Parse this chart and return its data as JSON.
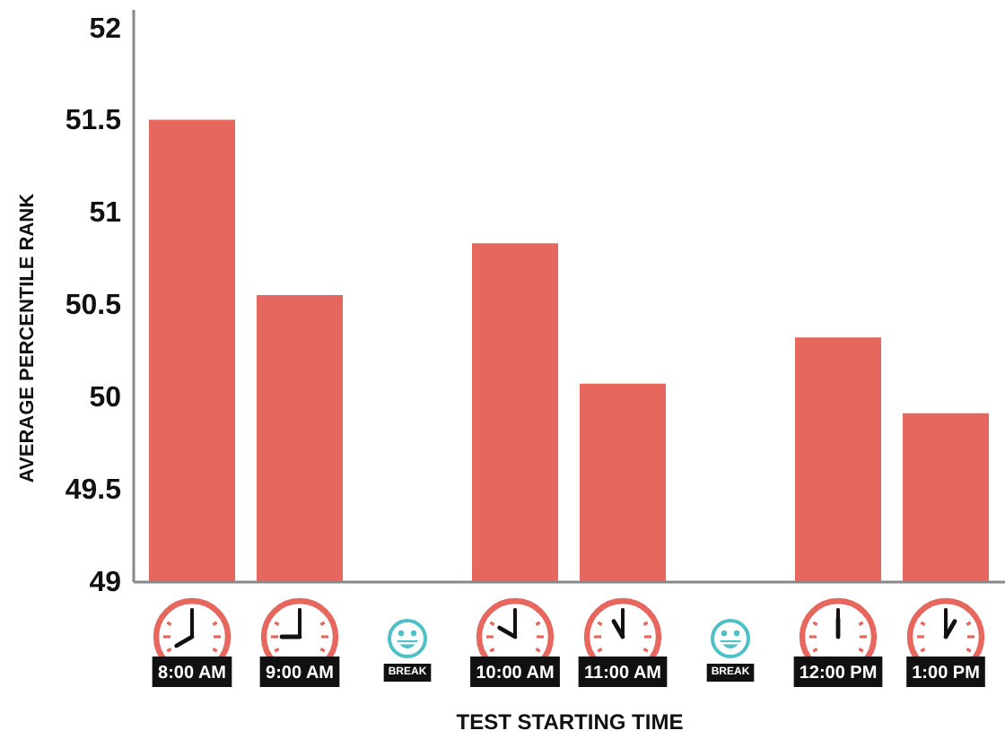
{
  "chart_data": {
    "type": "bar",
    "categories": [
      "8:00 AM",
      "9:00 AM",
      null,
      "10:00 AM",
      "11:00 AM",
      null,
      "12:00 PM",
      "1:00 PM"
    ],
    "values": [
      51.5,
      50.55,
      null,
      50.83,
      50.07,
      null,
      50.32,
      49.91
    ],
    "color": "#e5675e",
    "xlabel": "TEST STARTING TIME",
    "ylabel": "AVERAGE PERCENTILE RANK",
    "ylim": [
      49,
      52.1
    ],
    "yticks": [
      49,
      49.5,
      50,
      50.5,
      51,
      51.5,
      52
    ],
    "grid": false,
    "annotations": [
      "BREAK",
      "BREAK"
    ]
  }
}
